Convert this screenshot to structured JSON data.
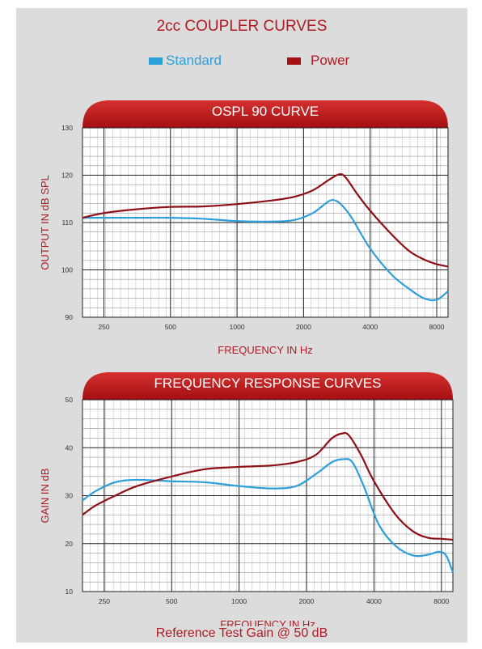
{
  "colors": {
    "standard": "#2f9fd8",
    "power": "#8e1016",
    "accent": "#b01a22",
    "banner_top": "#d4302e",
    "banner_bottom": "#a51014"
  },
  "title": "2cc COUPLER CURVES",
  "legend": [
    {
      "label": "Standard",
      "color": "#2f9fd8",
      "text_color": "#2f9fd8"
    },
    {
      "label": "Power",
      "color": "#a51014",
      "text_color": "#b01a22"
    }
  ],
  "footer": "Reference Test Gain @ 50 dB",
  "chart_data": [
    {
      "type": "line",
      "title": "OSPL 90 CURVE",
      "xlabel": "FREQUENCY IN Hz",
      "ylabel": "OUTPUT IN dB SPL",
      "x_scale": "log",
      "xlim": [
        200,
        9000
      ],
      "ylim": [
        90,
        130
      ],
      "x_ticks": [
        250,
        500,
        1000,
        2000,
        4000,
        8000
      ],
      "y_ticks": [
        90,
        100,
        110,
        120,
        130
      ],
      "grid": true,
      "series": [
        {
          "name": "Standard",
          "x": [
            200,
            250,
            350,
            500,
            700,
            1000,
            1400,
            1800,
            2200,
            2600,
            2800,
            3000,
            3300,
            4000,
            5000,
            6000,
            7000,
            8000,
            9000
          ],
          "y": [
            111,
            111,
            111,
            111,
            110.8,
            110.3,
            110.2,
            110.5,
            112,
            114.5,
            114.6,
            113.5,
            111,
            104.5,
            99,
            96,
            94,
            93.7,
            95.5
          ]
        },
        {
          "name": "Power",
          "x": [
            200,
            250,
            350,
            500,
            700,
            1000,
            1400,
            1800,
            2200,
            2600,
            2900,
            3100,
            3500,
            4000,
            5000,
            6000,
            7000,
            8000,
            9000
          ],
          "y": [
            111,
            112,
            112.8,
            113.3,
            113.4,
            113.9,
            114.6,
            115.4,
            116.8,
            119,
            120.2,
            119.5,
            116,
            112.5,
            107.5,
            104,
            102.2,
            101.2,
            100.7
          ]
        }
      ]
    },
    {
      "type": "line",
      "title": "FREQUENCY RESPONSE CURVES",
      "xlabel": "FREQUENCY IN Hz",
      "ylabel": "GAIN IN dB",
      "x_scale": "log",
      "xlim": [
        200,
        9000
      ],
      "ylim": [
        10,
        50
      ],
      "x_ticks": [
        250,
        500,
        1000,
        2000,
        4000,
        8000
      ],
      "y_ticks": [
        10,
        20,
        30,
        40,
        50
      ],
      "grid": true,
      "series": [
        {
          "name": "Standard",
          "x": [
            200,
            230,
            280,
            350,
            500,
            700,
            1000,
            1400,
            1800,
            2200,
            2600,
            2900,
            3200,
            3600,
            4200,
            5000,
            6000,
            7000,
            7800,
            8400,
            9000
          ],
          "y": [
            29,
            31,
            32.8,
            33.3,
            33,
            32.8,
            32,
            31.5,
            32,
            34.5,
            37,
            37.6,
            37,
            32,
            24,
            19.5,
            17.5,
            17.7,
            18.3,
            17.5,
            14
          ]
        },
        {
          "name": "Power",
          "x": [
            200,
            230,
            280,
            350,
            500,
            700,
            1000,
            1400,
            1800,
            2200,
            2600,
            2900,
            3100,
            3500,
            4000,
            5000,
            6000,
            7000,
            8000,
            9000
          ],
          "y": [
            26,
            28,
            30,
            32,
            34,
            35.5,
            36,
            36.3,
            37,
            38.5,
            42,
            43,
            42.5,
            38.5,
            33,
            26,
            22.5,
            21.2,
            21,
            20.8
          ]
        }
      ]
    }
  ]
}
